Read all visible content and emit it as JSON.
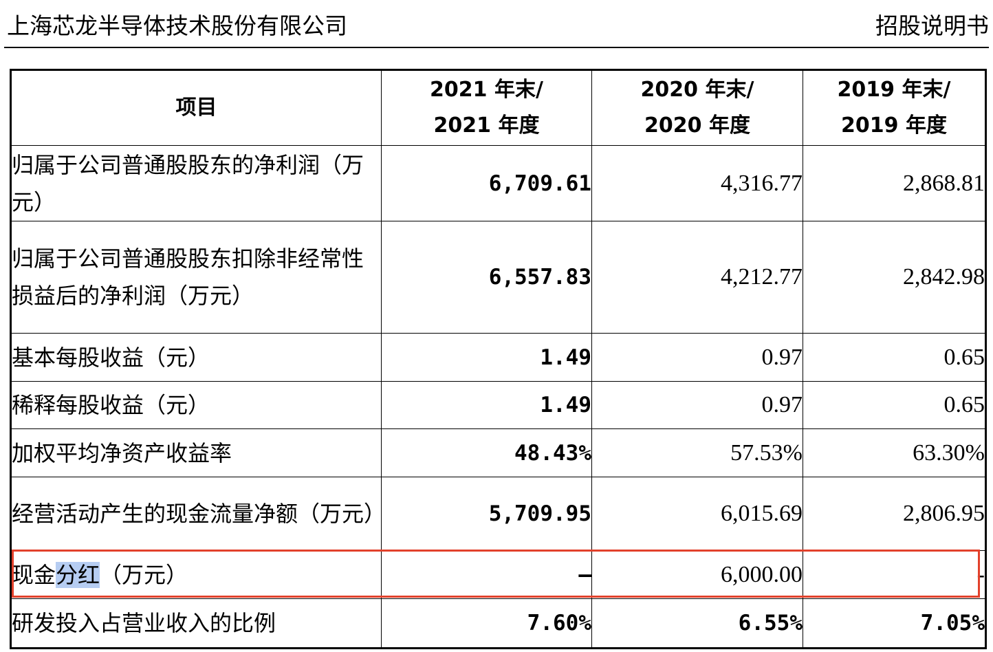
{
  "header": {
    "company_name": "上海芯龙半导体技术股份有限公司",
    "doc_type": "招股说明书"
  },
  "table": {
    "columns": [
      {
        "key": "item",
        "lines": [
          "项目"
        ]
      },
      {
        "key": "y2021",
        "lines": [
          "2021 年末/",
          "2021 年度"
        ]
      },
      {
        "key": "y2020",
        "lines": [
          "2020 年末/",
          "2020 年度"
        ]
      },
      {
        "key": "y2019",
        "lines": [
          "2019 年末/",
          "2019 年度"
        ]
      }
    ],
    "rows": [
      {
        "label": "归属于公司普通股股东的净利润（万元）",
        "y2021": "6,709.61",
        "y2020": "4,316.77",
        "y2019": "2,868.81"
      },
      {
        "label": "归属于公司普通股股东扣除非经常性损益后的净利润（万元）",
        "y2021": "6,557.83",
        "y2020": "4,212.77",
        "y2019": "2,842.98"
      },
      {
        "label": "基本每股收益（元）",
        "y2021": "1.49",
        "y2020": "0.97",
        "y2019": "0.65"
      },
      {
        "label": "稀释每股收益（元）",
        "y2021": "1.49",
        "y2020": "0.97",
        "y2019": "0.65"
      },
      {
        "label": "加权平均净资产收益率",
        "y2021": "48.43%",
        "y2020": "57.53%",
        "y2019": "63.30%"
      },
      {
        "label": "经营活动产生的现金流量净额（万元）",
        "y2021": "5,709.95",
        "y2020": "6,015.69",
        "y2019": "2,806.95"
      },
      {
        "label_parts": [
          "现金",
          "分红",
          "（万元）"
        ],
        "y2021": "–",
        "y2020": "6,000.00",
        "y2019": "-"
      },
      {
        "label": "研发投入占营业收入的比例",
        "y2021": "7.60%",
        "y2020": "6.55%",
        "y2019": "7.05%"
      }
    ]
  },
  "highlight": {
    "box_color": "#e2412b",
    "selection_color": "#b6cdf2"
  }
}
